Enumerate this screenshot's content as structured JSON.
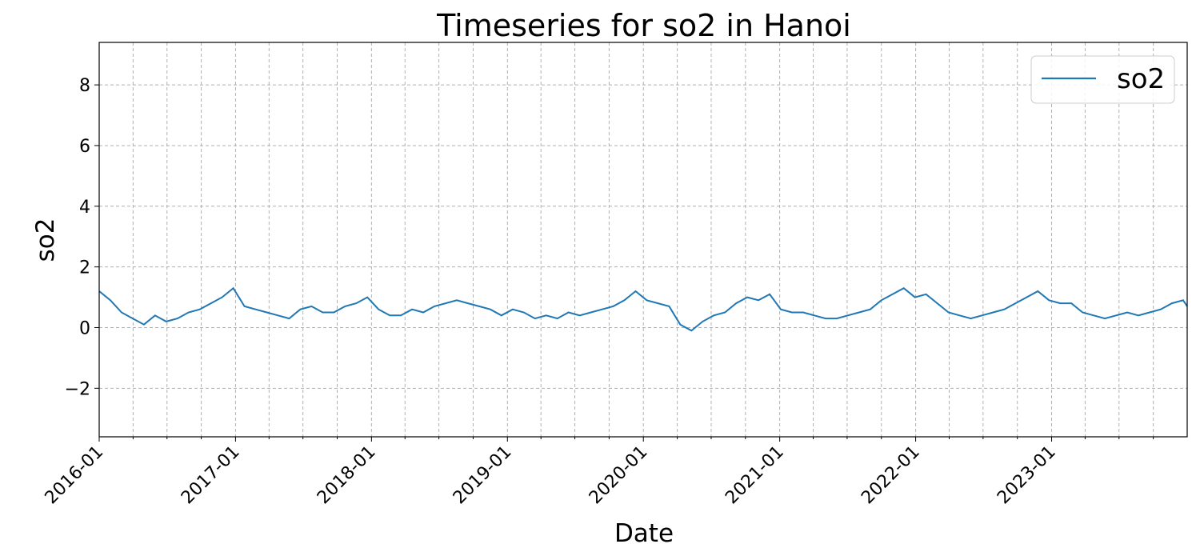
{
  "chart_data": {
    "type": "line",
    "title": "Timeseries for so2 in Hanoi",
    "xlabel": "Date",
    "ylabel": "so2",
    "x_range": [
      "2016-01-01",
      "2023-12-31"
    ],
    "ylim": [
      -3.6,
      9.4
    ],
    "y_ticks": [
      -2,
      0,
      2,
      4,
      6,
      8
    ],
    "y_tick_labels": [
      "−2",
      "0",
      "2",
      "4",
      "6",
      "8"
    ],
    "x_ticks": [
      "2016-01",
      "2017-01",
      "2018-01",
      "2019-01",
      "2020-01",
      "2021-01",
      "2022-01",
      "2023-01"
    ],
    "grid": true,
    "legend": {
      "position": "top-right",
      "entries": [
        "so2"
      ]
    },
    "colors": {
      "so2": "#1f77b4",
      "grid": "#b0b0b0"
    },
    "series": [
      {
        "name": "so2",
        "x": [
          "2016-01-01",
          "2016-01-31",
          "2016-03-01",
          "2016-03-31",
          "2016-04-30",
          "2016-05-30",
          "2016-06-29",
          "2016-07-29",
          "2016-08-28",
          "2016-09-27",
          "2016-10-27",
          "2016-11-26",
          "2016-12-26",
          "2017-01-25",
          "2017-02-24",
          "2017-03-26",
          "2017-04-25",
          "2017-05-25",
          "2017-06-24",
          "2017-07-24",
          "2017-08-23",
          "2017-09-22",
          "2017-10-22",
          "2017-11-21",
          "2017-12-21",
          "2018-01-20",
          "2018-02-19",
          "2018-03-21",
          "2018-04-20",
          "2018-05-20",
          "2018-06-19",
          "2018-07-19",
          "2018-08-18",
          "2018-09-17",
          "2018-10-17",
          "2018-11-16",
          "2018-12-16",
          "2019-01-15",
          "2019-02-14",
          "2019-03-16",
          "2019-04-15",
          "2019-05-15",
          "2019-06-14",
          "2019-07-14",
          "2019-08-13",
          "2019-09-12",
          "2019-10-12",
          "2019-11-11",
          "2019-12-11",
          "2020-01-10",
          "2020-02-09",
          "2020-03-10",
          "2020-04-09",
          "2020-05-09",
          "2020-06-08",
          "2020-07-08",
          "2020-08-07",
          "2020-09-06",
          "2020-10-06",
          "2020-11-05",
          "2020-12-05",
          "2021-01-04",
          "2021-02-03",
          "2021-03-05",
          "2021-04-04",
          "2021-05-04",
          "2021-06-03",
          "2021-07-03",
          "2021-08-02",
          "2021-09-01",
          "2021-10-01",
          "2021-10-31",
          "2021-11-30",
          "2021-12-30",
          "2022-01-29",
          "2022-02-28",
          "2022-03-30",
          "2022-04-29",
          "2022-05-29",
          "2022-06-28",
          "2022-07-28",
          "2022-08-27",
          "2022-09-26",
          "2022-10-26",
          "2022-11-25",
          "2022-12-25",
          "2023-01-24",
          "2023-02-23",
          "2023-03-25",
          "2023-04-24",
          "2023-05-24",
          "2023-06-23",
          "2023-07-23",
          "2023-08-22",
          "2023-09-21",
          "2023-10-21",
          "2023-11-20",
          "2023-12-20",
          "2023-12-31"
        ],
        "values": [
          1.2,
          0.9,
          0.5,
          0.3,
          0.1,
          0.4,
          0.2,
          0.3,
          0.5,
          0.6,
          0.8,
          1.0,
          1.3,
          0.7,
          0.6,
          0.5,
          0.4,
          0.3,
          0.6,
          0.7,
          0.5,
          0.5,
          0.7,
          0.8,
          1.0,
          0.6,
          0.4,
          0.4,
          0.6,
          0.5,
          0.7,
          0.8,
          0.9,
          0.8,
          0.7,
          0.6,
          0.4,
          0.6,
          0.5,
          0.3,
          0.4,
          0.3,
          0.5,
          0.4,
          0.5,
          0.6,
          0.7,
          0.9,
          1.2,
          0.9,
          0.8,
          0.7,
          0.1,
          -0.1,
          0.2,
          0.4,
          0.5,
          0.8,
          1.0,
          0.9,
          1.1,
          0.6,
          0.5,
          0.5,
          0.4,
          0.3,
          0.3,
          0.4,
          0.5,
          0.6,
          0.9,
          1.1,
          1.3,
          1.0,
          1.1,
          0.8,
          0.5,
          0.4,
          0.3,
          0.4,
          0.5,
          0.6,
          0.8,
          1.0,
          1.2,
          0.9,
          0.8,
          0.8,
          0.5,
          0.4,
          0.3,
          0.4,
          0.5,
          0.4,
          0.5,
          0.6,
          0.8,
          0.9,
          0.7
        ]
      }
    ]
  }
}
